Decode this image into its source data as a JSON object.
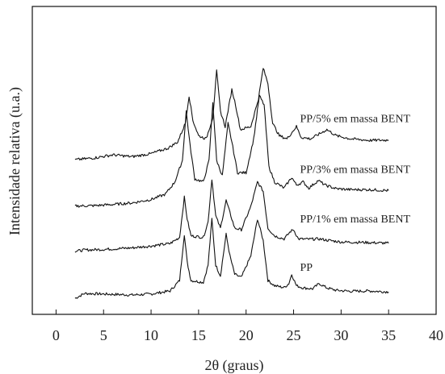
{
  "chart_data": {
    "type": "line",
    "title": "",
    "xlabel": "2θ (graus)",
    "ylabel": "Intensidade relativa (u.a.)",
    "xlim": [
      -2.5,
      40
    ],
    "ylim": [
      0,
      100
    ],
    "xticks": [
      0,
      5,
      10,
      15,
      20,
      25,
      30,
      35,
      40
    ],
    "grid": false,
    "legend": "inline labels right of curves",
    "series": [
      {
        "name": "PP",
        "baseline": 5.5,
        "points": [
          [
            2,
            5.2
          ],
          [
            3,
            6.8
          ],
          [
            5,
            6.6
          ],
          [
            8,
            6.3
          ],
          [
            10,
            6.6
          ],
          [
            12,
            7.6
          ],
          [
            13,
            11
          ],
          [
            13.5,
            26
          ],
          [
            13.8,
            17
          ],
          [
            14.2,
            11
          ],
          [
            15.5,
            10.4
          ],
          [
            16,
            16
          ],
          [
            16.4,
            31
          ],
          [
            16.8,
            16
          ],
          [
            17.3,
            12.5
          ],
          [
            17.9,
            26
          ],
          [
            18.3,
            19
          ],
          [
            18.8,
            13
          ],
          [
            19.5,
            12
          ],
          [
            20.5,
            19
          ],
          [
            21.2,
            31
          ],
          [
            21.8,
            24
          ],
          [
            22.3,
            11
          ],
          [
            23,
            9.3
          ],
          [
            24,
            8.7
          ],
          [
            24.5,
            10
          ],
          [
            24.8,
            13
          ],
          [
            25.3,
            9.3
          ],
          [
            26,
            8.6
          ],
          [
            27,
            8.3
          ],
          [
            27.7,
            10
          ],
          [
            28.5,
            8.6
          ],
          [
            29.5,
            7.8
          ],
          [
            31,
            7.5
          ],
          [
            33,
            7.6
          ],
          [
            35,
            7.3
          ]
        ]
      },
      {
        "name": "PP/1% em massa BENT",
        "baseline": 20.5,
        "points": [
          [
            2,
            20.5
          ],
          [
            3,
            20.9
          ],
          [
            5,
            21.1
          ],
          [
            8,
            21.6
          ],
          [
            10,
            22.2
          ],
          [
            12,
            23
          ],
          [
            13,
            25
          ],
          [
            13.5,
            38
          ],
          [
            13.8,
            31
          ],
          [
            14.2,
            25.5
          ],
          [
            15.5,
            25
          ],
          [
            16,
            30
          ],
          [
            16.4,
            44
          ],
          [
            16.8,
            32
          ],
          [
            17.3,
            28
          ],
          [
            17.9,
            37
          ],
          [
            18.3,
            33
          ],
          [
            18.8,
            28
          ],
          [
            19.5,
            27.5
          ],
          [
            20.5,
            35
          ],
          [
            21.2,
            43
          ],
          [
            21.8,
            40
          ],
          [
            22.3,
            28
          ],
          [
            23,
            25.5
          ],
          [
            24,
            24.5
          ],
          [
            24.7,
            27
          ],
          [
            25,
            27.5
          ],
          [
            25.5,
            24.5
          ],
          [
            26.5,
            24.4
          ],
          [
            27.7,
            24.5
          ],
          [
            28.5,
            24.1
          ],
          [
            30,
            23.5
          ],
          [
            32,
            23.4
          ],
          [
            35,
            23.1
          ]
        ]
      },
      {
        "name": "PP/3% em massa BENT",
        "baseline": 35.5,
        "points": [
          [
            2,
            35.2
          ],
          [
            4,
            35.3
          ],
          [
            6,
            35.7
          ],
          [
            8,
            36.2
          ],
          [
            10,
            37.3
          ],
          [
            11.5,
            39
          ],
          [
            12.5,
            43
          ],
          [
            13.3,
            50
          ],
          [
            13.7,
            66
          ],
          [
            14.1,
            55
          ],
          [
            14.6,
            44
          ],
          [
            15.5,
            43
          ],
          [
            16.1,
            50
          ],
          [
            16.5,
            69
          ],
          [
            16.9,
            50
          ],
          [
            17.5,
            45
          ],
          [
            18.1,
            62
          ],
          [
            18.5,
            56
          ],
          [
            19.1,
            46
          ],
          [
            20,
            46
          ],
          [
            20.8,
            57
          ],
          [
            21.4,
            71
          ],
          [
            21.9,
            68
          ],
          [
            22.4,
            48
          ],
          [
            23,
            43
          ],
          [
            24,
            41
          ],
          [
            24.8,
            44.5
          ],
          [
            25.3,
            42
          ],
          [
            26,
            43
          ],
          [
            26.6,
            41
          ],
          [
            27.6,
            43.5
          ],
          [
            28.3,
            42
          ],
          [
            29.5,
            40.8
          ],
          [
            31,
            40.5
          ],
          [
            33,
            40.5
          ],
          [
            35,
            40.2
          ]
        ]
      },
      {
        "name": "PP/5% em massa BENT",
        "baseline": 50.5,
        "points": [
          [
            2,
            50.2
          ],
          [
            4,
            50.8
          ],
          [
            6,
            51.8
          ],
          [
            8,
            51.2
          ],
          [
            10,
            52.2
          ],
          [
            11.8,
            54
          ],
          [
            12.8,
            56
          ],
          [
            13.6,
            62
          ],
          [
            14,
            71
          ],
          [
            14.4,
            63
          ],
          [
            15,
            58
          ],
          [
            15.8,
            57
          ],
          [
            16.5,
            64
          ],
          [
            16.9,
            79
          ],
          [
            17.3,
            66
          ],
          [
            17.8,
            61
          ],
          [
            18.5,
            73
          ],
          [
            18.9,
            68
          ],
          [
            19.4,
            60
          ],
          [
            20.5,
            61
          ],
          [
            21.3,
            70
          ],
          [
            21.8,
            80
          ],
          [
            22.3,
            75
          ],
          [
            22.8,
            62
          ],
          [
            23.5,
            58
          ],
          [
            24.3,
            57
          ],
          [
            25.3,
            61
          ],
          [
            25.8,
            57.5
          ],
          [
            26.8,
            57
          ],
          [
            28.5,
            60
          ],
          [
            29.5,
            58
          ],
          [
            31,
            57
          ],
          [
            33,
            56.5
          ],
          [
            35,
            56.6
          ]
        ]
      }
    ],
    "annotations": [
      {
        "text": "PP",
        "x": 25,
        "y": 15.5
      },
      {
        "text": "PP/1% em massa BENT",
        "x": 25,
        "y": 31.2
      },
      {
        "text": "PP/3% em massa BENT",
        "x": 25,
        "y": 47.3
      },
      {
        "text": "PP/5% em massa BENT",
        "x": 25,
        "y": 63.7
      }
    ]
  }
}
